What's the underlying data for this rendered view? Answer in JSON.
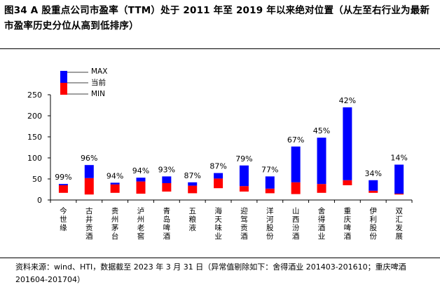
{
  "title": "图34 A 股重点公司市盈率（TTM）处于 2011 年至 2019 年以来绝对位置（从左至右行业为最新市盈率历史分位从高到低排序）",
  "source": "资料来源：wind、HTI，数据截至 2023 年 3 月 31 日（异常值剔除如下：舍得酒业 201403-201610；重庆啤酒 201604-201704）",
  "colors": {
    "max_bar": "#0000ff",
    "current_bar": "#ff0000",
    "axis": "#000000"
  },
  "chart_data": {
    "type": "bar",
    "subtype": "floating-range",
    "ylim": [
      0,
      250
    ],
    "yticks": [
      0,
      50,
      100,
      150,
      200,
      250
    ],
    "legend": {
      "position": "top-left",
      "entries": [
        "MAX",
        "当前",
        "MIN"
      ]
    },
    "categories": [
      "今世缘",
      "古井贡酒",
      "贵州茅台",
      "泸州老窖",
      "青岛啤酒",
      "五粮液",
      "海天味业",
      "迎驾贡酒",
      "洋河股份",
      "山西汾酒",
      "舍得酒业",
      "重庆啤酒",
      "伊利股份",
      "双汇发展"
    ],
    "percentile_labels": [
      "99%",
      "96%",
      "94%",
      "94%",
      "93%",
      "87%",
      "87%",
      "79%",
      "77%",
      "67%",
      "45%",
      "42%",
      "34%",
      "14%"
    ],
    "series": [
      {
        "name": "MIN",
        "values": [
          17,
          13,
          17,
          15,
          20,
          16,
          28,
          20,
          16,
          14,
          17,
          35,
          17,
          13
        ]
      },
      {
        "name": "当前",
        "values": [
          35,
          52,
          37,
          44,
          40,
          34,
          51,
          33,
          27,
          42,
          38,
          47,
          22,
          15
        ]
      },
      {
        "name": "MAX",
        "values": [
          38,
          83,
          41,
          53,
          56,
          42,
          64,
          82,
          56,
          127,
          148,
          220,
          47,
          84
        ]
      }
    ]
  }
}
